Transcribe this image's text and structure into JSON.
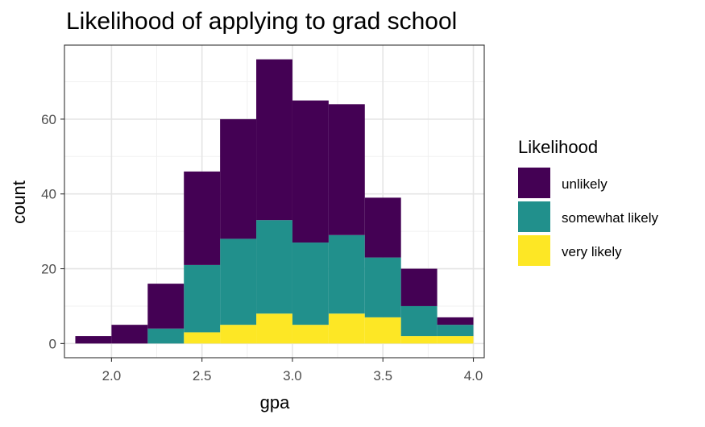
{
  "chart_data": {
    "type": "bar",
    "stacked": true,
    "histogram": true,
    "title": "Likelihood of applying to grad school",
    "xlabel": "gpa",
    "ylabel": "count",
    "xlim": [
      1.74,
      4.06
    ],
    "ylim": [
      -3.8,
      79.8
    ],
    "x_ticks": [
      2.0,
      2.5,
      3.0,
      3.5,
      4.0
    ],
    "x_tick_labels": [
      "2.0",
      "2.5",
      "3.0",
      "3.5",
      "4.0"
    ],
    "y_ticks": [
      0,
      20,
      40,
      60
    ],
    "y_tick_labels": [
      "0",
      "20",
      "40",
      "60"
    ],
    "grid": true,
    "bin_width": 0.2,
    "bins_left": [
      1.8,
      2.0,
      2.2,
      2.4,
      2.6,
      2.8,
      3.0,
      3.2,
      3.4,
      3.6,
      3.8
    ],
    "bins_right": [
      2.0,
      2.2,
      2.4,
      2.6,
      2.8,
      3.0,
      3.2,
      3.4,
      3.6,
      3.8,
      4.0
    ],
    "legend": {
      "title": "Likelihood",
      "position": "right"
    },
    "series": [
      {
        "name": "very likely",
        "color": "#FDE725",
        "values": [
          0,
          0,
          0,
          3,
          5,
          8,
          5,
          8,
          7,
          2,
          2
        ]
      },
      {
        "name": "somewhat likely",
        "color": "#21908C",
        "values": [
          0,
          0,
          4,
          18,
          23,
          25,
          22,
          21,
          16,
          8,
          3
        ]
      },
      {
        "name": "unlikely",
        "color": "#440154",
        "values": [
          2,
          5,
          12,
          25,
          32,
          43,
          38,
          35,
          16,
          10,
          2
        ]
      }
    ],
    "legend_order": [
      "unlikely",
      "somewhat likely",
      "very likely"
    ]
  }
}
